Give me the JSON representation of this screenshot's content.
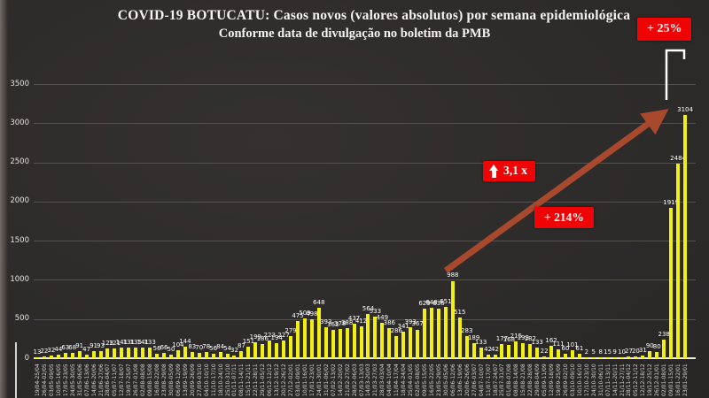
{
  "chart_data": {
    "type": "bar",
    "title": "COVID-19 BOTUCATU: Casos novos (valores absolutos) por semana epidemiológica",
    "subtitle": "Conforme data de divulgação no boletim da PMB",
    "xlabel": "",
    "ylabel": "",
    "ylim": [
      0,
      3500
    ],
    "yticks": [
      0,
      500,
      1000,
      1500,
      2000,
      2500,
      3000,
      3500
    ],
    "grid": true,
    "legend": "none",
    "categories": [
      "19/04-25/04",
      "26/04-02/05",
      "03/05-09/05",
      "10/05-16/05",
      "17/05-23/05",
      "24/05-30/05",
      "31/05-06/06",
      "07/06-13/06",
      "14/06-20/06",
      "21/06-27/06",
      "28/06-04/07",
      "05/07-11/07",
      "12/07-18/07",
      "19/07-25/07",
      "26/07-01/08",
      "02/08-08/08",
      "09/08-15/08",
      "16/08-22/08",
      "23/08-29/08",
      "30/08-05/09",
      "06/09-12/09",
      "13/09-19/09",
      "20/09-26/09",
      "27/09-03/10",
      "04/10-10/10",
      "11/10-17/10",
      "18/10-24/10",
      "25/10-31/10",
      "01/11-07/11",
      "08/11-14/11",
      "15/11-21/11",
      "22/11-28/11",
      "29/11-05/12",
      "06/12-12/12",
      "13/12-19/12",
      "20/12-26/12",
      "27/12-02/01",
      "03/01-09/01",
      "10/01-16/01",
      "17/01-23/01",
      "24/01-30/01",
      "31/01-06/02",
      "07/02-13/02",
      "14/02-20/02",
      "21/02-27/02",
      "28/02-06/03",
      "07/03-13/03",
      "14/03-20/03",
      "21/03-27/03",
      "28/03-03/04",
      "04/04-10/04",
      "11/04-17/04",
      "18/04-24/04",
      "25/04-01/05",
      "02/05-08/05",
      "09/05-15/05",
      "16/05-22/05",
      "23/05-29/05",
      "30/05-05/06",
      "06/06-12/06",
      "13/06-19/06",
      "20/06-26/06",
      "27/06-03/07",
      "04/07-10/07",
      "11/07-17/07",
      "18/07-24/07",
      "25/07-31/07",
      "01/08-07/08",
      "08/08-14/08",
      "15/08-21/08",
      "22/08-28/08",
      "29/08-04/09",
      "05/09-11/09",
      "12/09-18/09",
      "19/09-25/09",
      "26/09-02/10",
      "03/10-09/10",
      "10/10-16/10",
      "17/10-23/10",
      "24/10-30/10",
      "31/10-06/11",
      "07/11-13/11",
      "14/11-20/11",
      "21/11-27/11",
      "28/11-04/12",
      "05/12-11/12",
      "12/12-18/12",
      "19/12-25/12",
      "26/12-01/01",
      "02/01-08/01",
      "09/01-15/01",
      "16/01-22/01",
      "23/01-29/01"
    ],
    "values": [
      13,
      22,
      32,
      44,
      63,
      68,
      91,
      47,
      91,
      93,
      123,
      121,
      141,
      131,
      135,
      141,
      133,
      56,
      66,
      50,
      104,
      144,
      83,
      70,
      78,
      56,
      84,
      54,
      32,
      87,
      151,
      199,
      186,
      223,
      194,
      227,
      279,
      475,
      509,
      498,
      648,
      393,
      363,
      378,
      388,
      437,
      412,
      564,
      533,
      449,
      386,
      286,
      341,
      393,
      367,
      629,
      648,
      636,
      651,
      988,
      515,
      283,
      189,
      133,
      42,
      42,
      177,
      168,
      215,
      193,
      182,
      133,
      22,
      162,
      111,
      60,
      101,
      61,
      2,
      5,
      8,
      15,
      9,
      10,
      27,
      20,
      31,
      90,
      80,
      238,
      1919,
      2484,
      3104
    ]
  },
  "annotations": {
    "pct_top": "+ 25%",
    "factor_label": "3,1 x",
    "pct_mid": "+ 214%"
  },
  "colors": {
    "bar": "#f3ef10",
    "badge_red": "#ee0404",
    "arrow": "#a8492e",
    "background": "#2c2a29",
    "text": "#f4f3f1"
  }
}
